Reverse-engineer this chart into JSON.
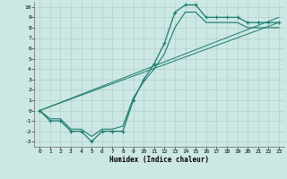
{
  "xlabel": "Humidex (Indice chaleur)",
  "background_color": "#cce8e4",
  "grid_color": "#b0c8c4",
  "line_color": "#1a7a6e",
  "xlim": [
    -0.5,
    23.5
  ],
  "ylim": [
    -3.5,
    10.5
  ],
  "xticks": [
    0,
    1,
    2,
    3,
    4,
    5,
    6,
    7,
    8,
    9,
    10,
    11,
    12,
    13,
    14,
    15,
    16,
    17,
    18,
    19,
    20,
    21,
    22,
    23
  ],
  "yticks": [
    -3,
    -2,
    -1,
    0,
    1,
    2,
    3,
    4,
    5,
    6,
    7,
    8,
    9,
    10
  ],
  "line1_x": [
    0,
    1,
    2,
    3,
    4,
    5,
    6,
    7,
    8,
    9,
    10,
    11,
    12,
    13,
    14,
    15,
    16,
    17,
    18,
    19,
    20,
    21,
    22,
    23
  ],
  "line1_y": [
    0,
    -1,
    -1,
    -2,
    -2,
    -3,
    -2,
    -2,
    -2,
    1,
    3,
    4.5,
    6.5,
    9.5,
    10.2,
    10.2,
    9,
    9,
    9,
    9,
    8.5,
    8.5,
    8.5,
    8.5
  ],
  "line2_x": [
    0,
    1,
    2,
    3,
    4,
    5,
    6,
    7,
    8,
    9,
    10,
    11,
    12,
    13,
    14,
    15,
    16,
    17,
    18,
    19,
    20,
    21,
    22,
    23
  ],
  "line2_y": [
    0,
    -0.8,
    -0.8,
    -1.8,
    -1.8,
    -2.5,
    -1.8,
    -1.8,
    -1.5,
    1.2,
    2.8,
    4,
    5.5,
    8,
    9.5,
    9.5,
    8.5,
    8.5,
    8.5,
    8.5,
    8,
    8,
    8,
    8
  ],
  "line3_x": [
    0,
    23
  ],
  "line3_y": [
    0,
    8.5
  ],
  "line4_x": [
    0,
    23
  ],
  "line4_y": [
    0,
    9.0
  ]
}
